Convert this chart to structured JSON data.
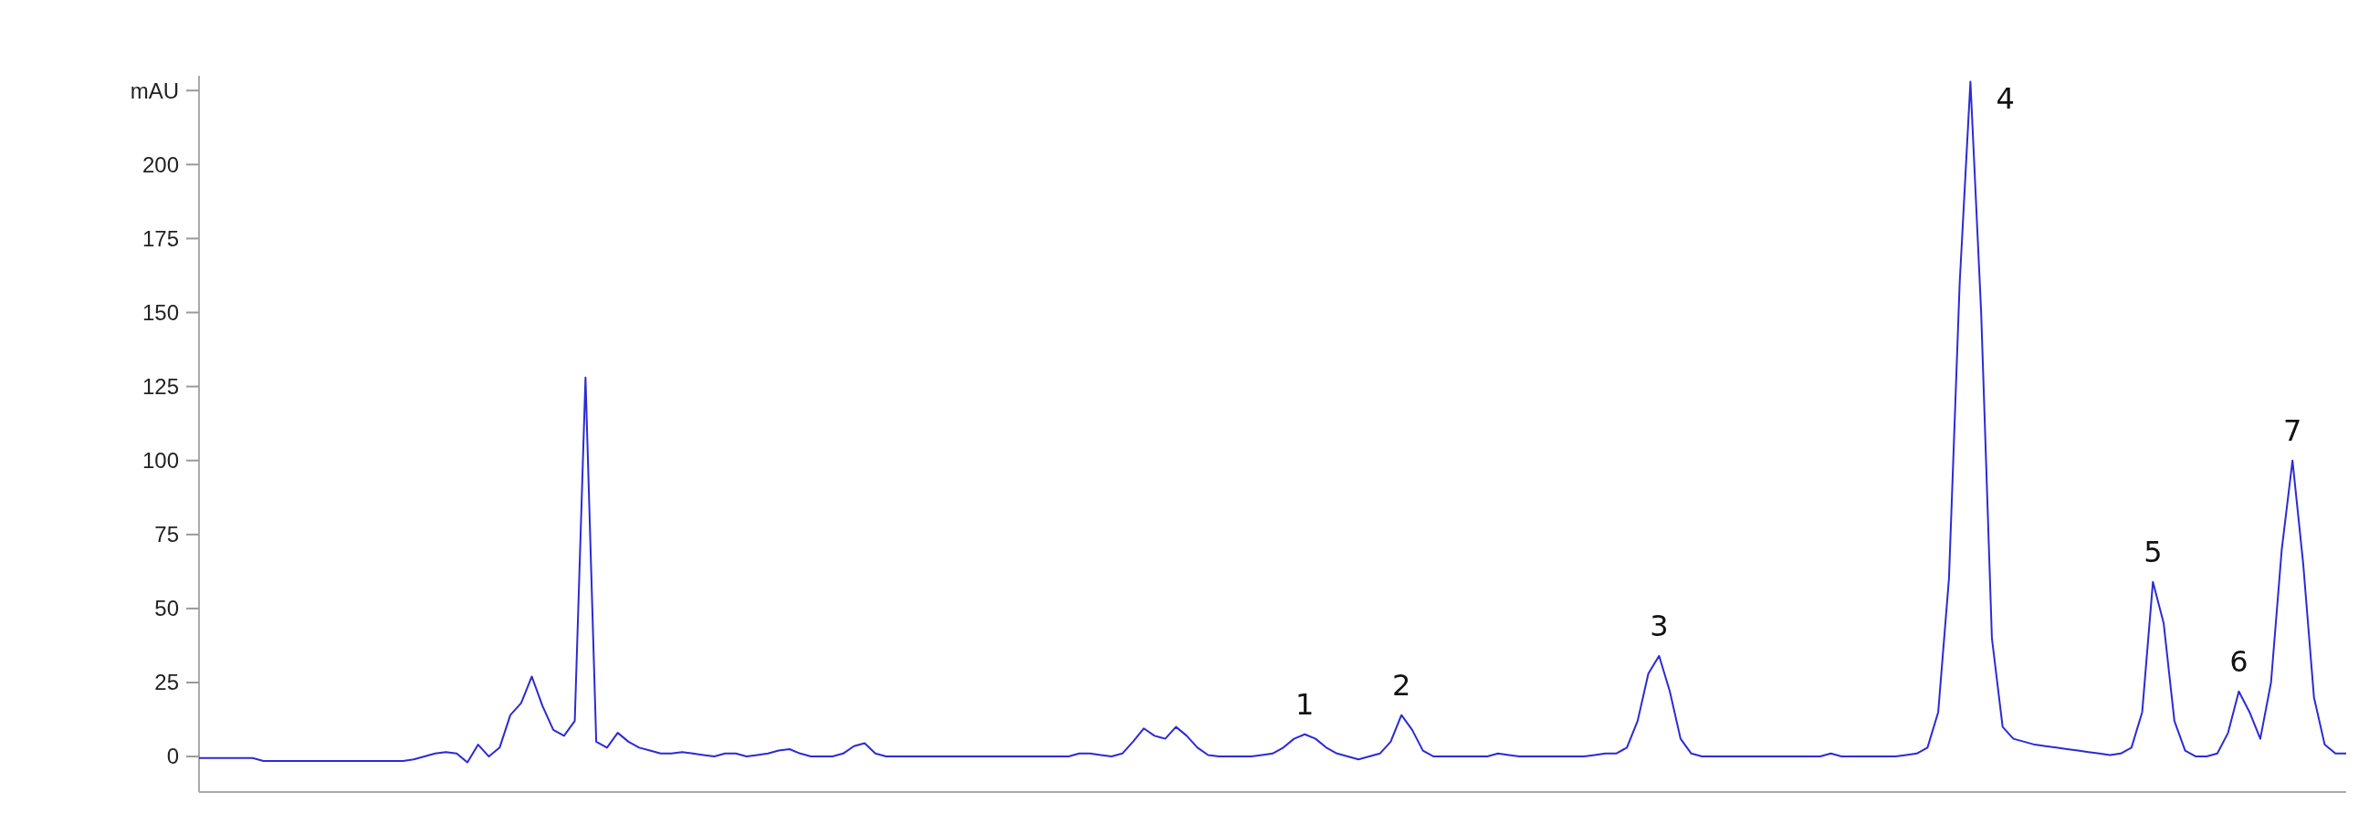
{
  "chart_data": {
    "type": "line",
    "ylim": [
      -12,
      230
    ],
    "yticks": [
      0,
      25,
      50,
      75,
      100,
      125,
      150,
      175,
      200,
      {
        "value": 225,
        "label": "mAU"
      }
    ],
    "categories": [
      null,
      null,
      null,
      null,
      null,
      null,
      null,
      null,
      null,
      null,
      null,
      null,
      null,
      null,
      null,
      null,
      null,
      null,
      null,
      null,
      null,
      null,
      null,
      null,
      null,
      null,
      null,
      null,
      null,
      null,
      null,
      null,
      null,
      null,
      null,
      null,
      null,
      null,
      null,
      null,
      null,
      null,
      null,
      null,
      null,
      null,
      null,
      null,
      null,
      null,
      null,
      null,
      null,
      null,
      null,
      null,
      null,
      null,
      null,
      null,
      null,
      null,
      null,
      null,
      null,
      null,
      null,
      null,
      null,
      null,
      null,
      null,
      null,
      null,
      null,
      null,
      null,
      null,
      null,
      null,
      null,
      null,
      null,
      null,
      null,
      null,
      null,
      null,
      null,
      null,
      null,
      null,
      null,
      null,
      null,
      null,
      null,
      null,
      null,
      null,
      null,
      null,
      null,
      null,
      null,
      null,
      null,
      null,
      null,
      null,
      null,
      null,
      null,
      null,
      null,
      null,
      null,
      null,
      null,
      null,
      null,
      null,
      null,
      null,
      null,
      null,
      null,
      null,
      null,
      null,
      null,
      null,
      null,
      null,
      null,
      null,
      null,
      null,
      null,
      null,
      null,
      null,
      null,
      null,
      null,
      null,
      null,
      null,
      null,
      null,
      null,
      null,
      null,
      null,
      null,
      null,
      null,
      null,
      null,
      null,
      null,
      null,
      null,
      null,
      null,
      null,
      null,
      null,
      null,
      null,
      null,
      null,
      null,
      null,
      null,
      null,
      null,
      null,
      null,
      null,
      null,
      null,
      null,
      null,
      null,
      null,
      null,
      null,
      null,
      null,
      null,
      null,
      null,
      null,
      null,
      null,
      null,
      null,
      null,
      null,
      null
    ],
    "series": [
      {
        "color": "#2b2bd6",
        "values": [
          -0.5,
          -0.5,
          -0.5,
          -0.5,
          -0.5,
          -0.5,
          -1.5,
          -1.5,
          -1.5,
          -1.5,
          -1.5,
          -1.5,
          -1.5,
          -1.5,
          -1.5,
          -1.5,
          -1.5,
          -1.5,
          -1.5,
          -1.5,
          -1,
          0,
          1,
          1.5,
          1,
          -2,
          4,
          0,
          3,
          14,
          18,
          27,
          17,
          9,
          7,
          12,
          128,
          5,
          3,
          8,
          5,
          3,
          2,
          1,
          1,
          1.5,
          1,
          0.5,
          0,
          1,
          1,
          0,
          0.5,
          1,
          2,
          2.5,
          1,
          0,
          0,
          0,
          1,
          3.5,
          4.5,
          1,
          0,
          0,
          0,
          0,
          0,
          0,
          0,
          0,
          0,
          0,
          0,
          0,
          0,
          0,
          0,
          0,
          0,
          0,
          1,
          1,
          0.5,
          0,
          1,
          5,
          9.5,
          7,
          6,
          10,
          7,
          3,
          0.5,
          0,
          0,
          0,
          0,
          0.5,
          1,
          3,
          6,
          7.5,
          6,
          3,
          1,
          0,
          -1,
          0,
          1,
          5,
          14,
          9,
          2,
          0,
          0,
          0,
          0,
          0,
          0,
          1,
          0.5,
          0,
          0,
          0,
          0,
          0,
          0,
          0,
          0.5,
          1,
          1,
          3,
          12,
          28,
          34,
          22,
          6,
          1,
          0,
          0,
          0,
          0,
          0,
          0,
          0,
          0,
          0,
          0,
          0,
          0,
          1,
          0,
          0,
          0,
          0,
          0,
          0,
          0.5,
          1,
          3,
          15,
          60,
          160,
          228,
          150,
          40,
          10,
          6,
          5,
          4,
          3.5,
          3,
          2.5,
          2,
          1.5,
          1,
          0.5,
          1,
          3,
          15,
          59,
          45,
          12,
          2,
          0,
          0,
          1,
          8,
          22,
          15,
          6,
          25,
          70,
          100,
          65,
          20,
          4,
          1,
          1
        ]
      }
    ],
    "annotations": [
      {
        "text": "1",
        "y": 7.5
      },
      {
        "text": "2",
        "y": 14
      },
      {
        "text": "3",
        "y": 34
      },
      "4",
      {
        "text": "5",
        "y": 59
      },
      {
        "text": "6",
        "y": 22
      },
      {
        "text": "7",
        "y": 100
      }
    ],
    "grid": false
  }
}
